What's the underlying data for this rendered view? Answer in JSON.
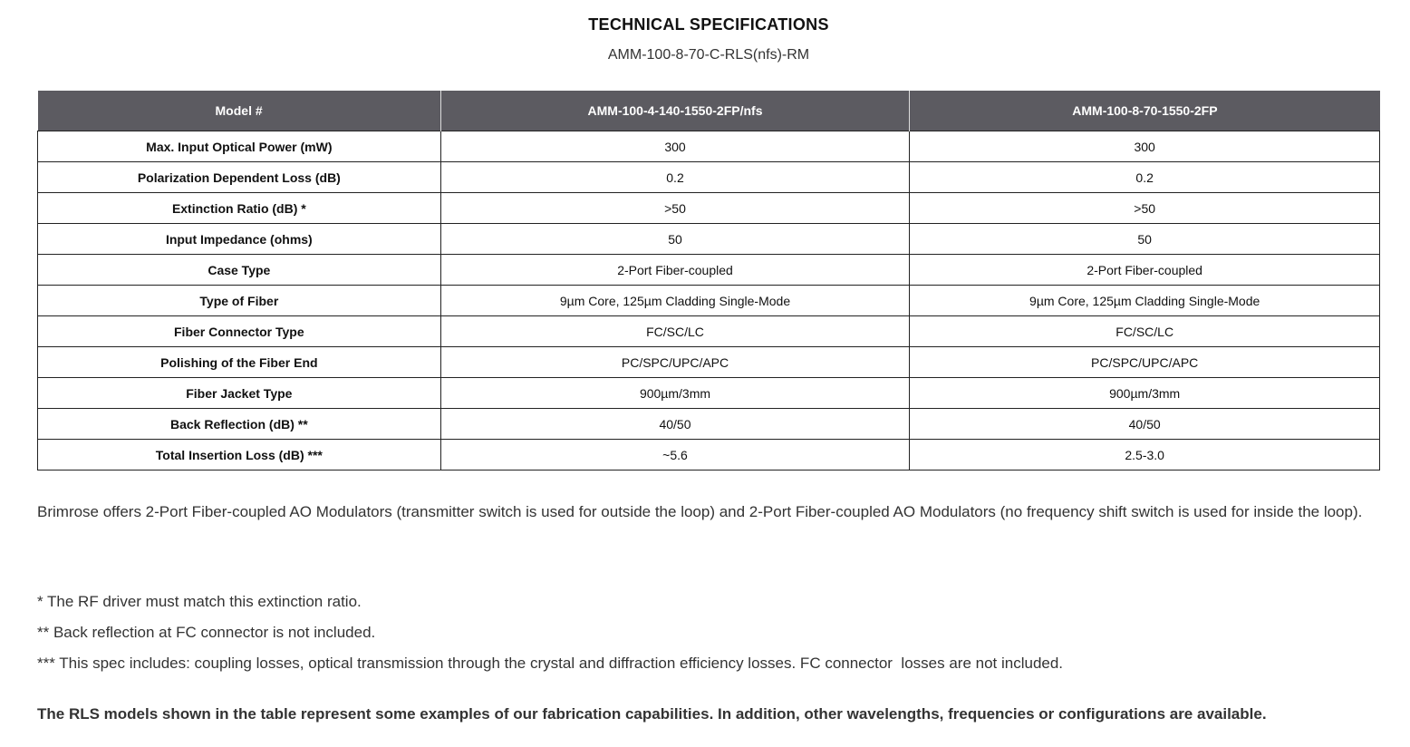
{
  "title": "TECHNICAL SPECIFICATIONS",
  "subtitle": "AMM-100-8-70-C-RLS(nfs)-RM",
  "table": {
    "headers": [
      "Model #",
      "AMM-100-4-140-1550-2FP/nfs",
      "AMM-100-8-70-1550-2FP"
    ],
    "rows": [
      [
        "Max. Input Optical Power (mW)",
        "300",
        "300"
      ],
      [
        "Polarization Dependent Loss (dB)",
        "0.2",
        "0.2"
      ],
      [
        "Extinction Ratio (dB) *",
        ">50",
        ">50"
      ],
      [
        "Input Impedance (ohms)",
        "50",
        "50"
      ],
      [
        "Case Type",
        "2-Port Fiber-coupled",
        "2-Port Fiber-coupled"
      ],
      [
        "Type of Fiber",
        "9µm Core, 125µm Cladding Single-Mode",
        "9µm Core, 125µm Cladding Single-Mode"
      ],
      [
        "Fiber Connector Type",
        "FC/SC/LC",
        "FC/SC/LC"
      ],
      [
        "Polishing of the Fiber End",
        "PC/SPC/UPC/APC",
        "PC/SPC/UPC/APC"
      ],
      [
        "Fiber Jacket Type",
        "900µm/3mm",
        "900µm/3mm"
      ],
      [
        "Back Reflection (dB) **",
        "40/50",
        "40/50"
      ],
      [
        "Total Insertion Loss (dB) ***",
        "~5.6",
        "2.5-3.0"
      ]
    ]
  },
  "intro": "Brimrose offers 2-Port Fiber-coupled AO Modulators (transmitter switch is used for outside the loop) and 2-Port Fiber-coupled AO Modulators (no frequency shift switch is used for inside the loop).",
  "notes": [
    "* The RF driver must match this extinction ratio.",
    "** Back reflection at FC connector is not included.",
    "*** This spec includes: coupling losses, optical transmission through the crystal and diffraction efficiency losses. FC connector  losses are not included."
  ],
  "closing": "The RLS models shown in the table represent some examples of our fabrication capabilities. In addition, other wavelengths, frequencies or configurations are available."
}
